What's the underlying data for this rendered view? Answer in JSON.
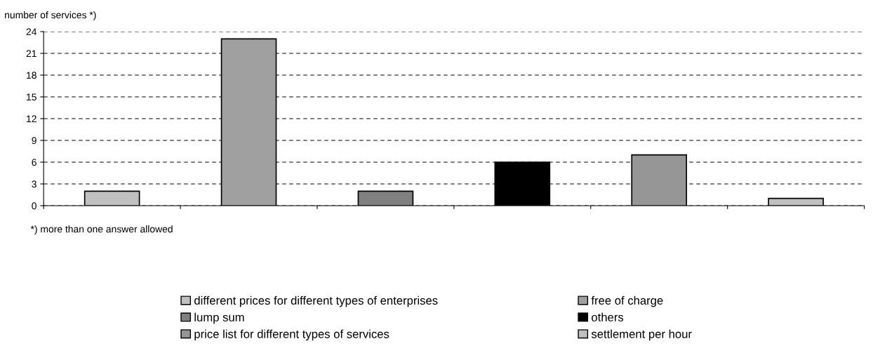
{
  "chart_data": {
    "type": "bar",
    "ylabel": "number of services *)",
    "categories": [
      null,
      null,
      null,
      null,
      null,
      null
    ],
    "series": [
      {
        "name": "different prices for different types of enterprises",
        "color": "#c0c0c0",
        "values": [
          2,
          null,
          null,
          null,
          null,
          null
        ]
      },
      {
        "name": "free of charge",
        "color": "#a0a0a0",
        "values": [
          null,
          23,
          null,
          null,
          null,
          null
        ]
      },
      {
        "name": "lump sum",
        "color": "#808080",
        "values": [
          null,
          null,
          2,
          null,
          null,
          null
        ]
      },
      {
        "name": "others",
        "color": "#000000",
        "values": [
          null,
          null,
          null,
          6,
          null,
          null
        ]
      },
      {
        "name": "price list for different types of services",
        "color": "#969696",
        "values": [
          null,
          null,
          null,
          null,
          7,
          null
        ]
      },
      {
        "name": "settlement per hour",
        "color": "#c0c0c0",
        "values": [
          null,
          null,
          null,
          null,
          null,
          1
        ]
      }
    ],
    "ylim": [
      0,
      24
    ],
    "yticks": [
      0,
      3,
      6,
      9,
      12,
      15,
      18,
      21,
      24
    ],
    "grid": "y",
    "legend": "bottom",
    "tick_labels": "y",
    "annotations": [
      "*) more than one answer allowed"
    ]
  }
}
